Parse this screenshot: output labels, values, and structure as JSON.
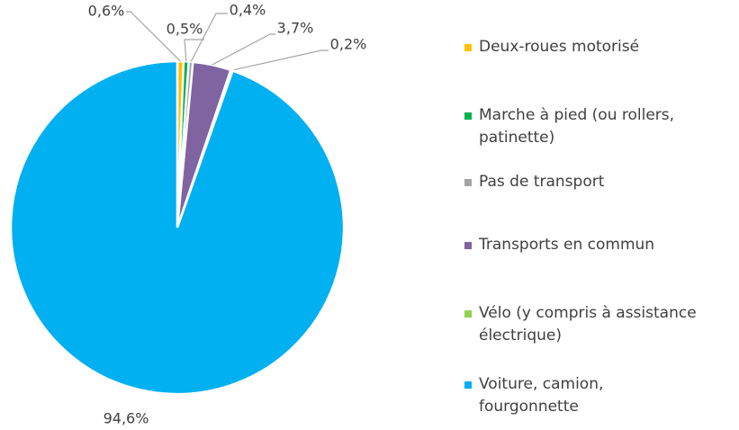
{
  "chart_data": {
    "type": "pie",
    "categories": [
      "Deux-roues motorisé",
      "Marche à pied (ou rollers, patinette)",
      "Pas de transport",
      "Transports en commun",
      "Vélo (y compris à assistance électrique)",
      "Voiture, camion, fourgonnette"
    ],
    "values": [
      0.6,
      0.5,
      0.4,
      3.7,
      0.2,
      94.6
    ],
    "value_labels": [
      "0,6%",
      "0,5%",
      "0,4%",
      "3,7%",
      "0,2%",
      "94,6%"
    ],
    "colors": [
      "#ffc000",
      "#00b050",
      "#a5a5a5",
      "#8064a2",
      "#92d050",
      "#00b0f0"
    ]
  }
}
